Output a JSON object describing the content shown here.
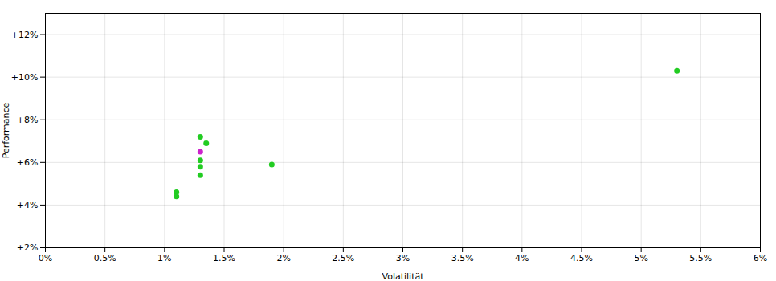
{
  "chart_data": {
    "type": "scatter",
    "xlabel": "Volatilität",
    "ylabel": "Performance",
    "xlim": [
      0,
      0.06
    ],
    "ylim": [
      0.02,
      0.13
    ],
    "xticks": [
      {
        "value": 0,
        "label": "0%"
      },
      {
        "value": 0.005,
        "label": "0.5%"
      },
      {
        "value": 0.01,
        "label": "1%"
      },
      {
        "value": 0.015,
        "label": "1.5%"
      },
      {
        "value": 0.02,
        "label": "2%"
      },
      {
        "value": 0.025,
        "label": "2.5%"
      },
      {
        "value": 0.03,
        "label": "3%"
      },
      {
        "value": 0.035,
        "label": "3.5%"
      },
      {
        "value": 0.04,
        "label": "4%"
      },
      {
        "value": 0.045,
        "label": "4.5%"
      },
      {
        "value": 0.05,
        "label": "5%"
      },
      {
        "value": 0.055,
        "label": "5.5%"
      },
      {
        "value": 0.06,
        "label": "6%"
      }
    ],
    "yticks": [
      {
        "value": 0.02,
        "label": "+2%"
      },
      {
        "value": 0.04,
        "label": "+4%"
      },
      {
        "value": 0.06,
        "label": "+6%"
      },
      {
        "value": 0.08,
        "label": "+8%"
      },
      {
        "value": 0.1,
        "label": "+10%"
      },
      {
        "value": 0.12,
        "label": "+12%"
      }
    ],
    "grid": true,
    "series": [
      {
        "color": "#22cc22",
        "x": [
          0.053,
          0.013,
          0.0135,
          0.013,
          0.013,
          0.013,
          0.019,
          0.011,
          0.011
        ],
        "values": [
          0.103,
          0.072,
          0.069,
          0.061,
          0.058,
          0.054,
          0.059,
          0.046,
          0.044
        ]
      },
      {
        "color": "#cc22cc",
        "x": [
          0.013
        ],
        "values": [
          0.065
        ]
      }
    ]
  }
}
